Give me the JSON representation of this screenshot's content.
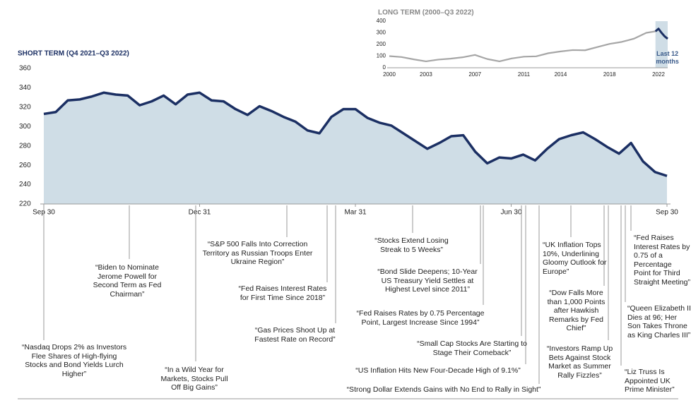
{
  "chart_data": [
    {
      "type": "area",
      "title": "SHORT TERM (Q4 2021–Q3 2022)",
      "color": "#1b2f63",
      "fill": "#cfdde6",
      "categories": [
        "Sep 30",
        null,
        null,
        null,
        null,
        null,
        null,
        null,
        null,
        null,
        null,
        null,
        null,
        "Dec 31",
        null,
        null,
        null,
        null,
        null,
        null,
        null,
        null,
        null,
        null,
        null,
        null,
        "Mar 31",
        null,
        null,
        null,
        null,
        null,
        null,
        null,
        null,
        null,
        null,
        null,
        null,
        "Jun 30",
        null,
        null,
        null,
        null,
        null,
        null,
        null,
        null,
        null,
        null,
        null,
        null,
        "Sep 30"
      ],
      "values": [
        313,
        315,
        327,
        328,
        331,
        335,
        333,
        332,
        322,
        326,
        332,
        323,
        333,
        335,
        327,
        326,
        318,
        312,
        321,
        316,
        310,
        305,
        296,
        293,
        310,
        318,
        318,
        309,
        304,
        301,
        293,
        285,
        277,
        283,
        290,
        291,
        274,
        262,
        268,
        267,
        271,
        265,
        277,
        287,
        291,
        294,
        287,
        279,
        272,
        283,
        264,
        253,
        249
      ],
      "ylim": [
        220,
        360
      ],
      "yticks": [
        220,
        240,
        260,
        280,
        300,
        320,
        340,
        360
      ],
      "annotations": [
        "“Nasdaq Drops 2% as Investors Flee Shares of High-flying Stocks and Bond Yields Lurch Higher”",
        "“Biden to Nominate Jerome Powell for Second Term as Fed Chairman”",
        "“In a Wild Year for Markets, Stocks Pull Off Big Gains”",
        "“S&P 500 Falls Into Correction Territory as Russian Troops Enter Ukraine Region”",
        "“Fed Raises Interest Rates for First Time Since 2018”",
        "“Gas Prices Shoot Up at Fastest Rate on Record”",
        "“Stocks Extend Losing Streak to 5 Weeks”",
        "“Bond Slide Deepens; 10-Year US Treasury Yield Settles at Highest Level since 2011”",
        "“Fed Raises Rates by 0.75 Percentage Point, Largest Increase Since 1994”",
        "“Small Cap Stocks Are Starting to Stage Their Comeback”",
        "“US Inflation Hits New Four-Decade High of 9.1%”",
        "“Strong Dollar Extends Gains with No End to Rally in Sight”",
        "“UK Inflation Tops 10%, Underlining Gloomy Outlook for Europe”",
        "“Dow Falls More than 1,000 Points after Hawkish Remarks by Fed Chief”",
        "“Investors Ramp Up Bets Against Stock Market as Summer Rally Fizzles”",
        "“Queen Elizabeth II Dies at 96; Her Son Takes Throne as King Charles III”",
        "“Liz Truss Is Appointed UK Prime Minister”",
        "“Fed Raises Interest Rates by 0.75 of a Percentage Point for Third Straight Meeting”"
      ]
    },
    {
      "type": "line",
      "title": "LONG TERM (2000–Q3 2022)",
      "highlight_label": "Last 12 months",
      "highlight_color": "#cfdde6",
      "series": [
        {
          "color": "#a6a6a6",
          "x": [
            2000,
            2001,
            2002,
            2003,
            2004,
            2005,
            2006,
            2007,
            2008,
            2009,
            2010,
            2011,
            2012,
            2013,
            2014,
            2015,
            2016,
            2017,
            2018,
            2019,
            2020,
            2021,
            2021.75
          ],
          "values": [
            100,
            92,
            72,
            55,
            70,
            78,
            90,
            110,
            75,
            55,
            80,
            95,
            98,
            125,
            140,
            152,
            150,
            178,
            205,
            222,
            250,
            300,
            313
          ]
        },
        {
          "color": "#1b2f63",
          "x": [
            2021.75,
            2022,
            2022.25,
            2022.5,
            2022.75
          ],
          "values": [
            313,
            335,
            300,
            270,
            249
          ]
        }
      ],
      "xlim": [
        2000,
        2022.75
      ],
      "xticks": [
        2000,
        2003,
        2007,
        2011,
        2014,
        2018,
        2022
      ],
      "ylim": [
        0,
        400
      ],
      "yticks": [
        0,
        100,
        200,
        300,
        400
      ]
    }
  ]
}
